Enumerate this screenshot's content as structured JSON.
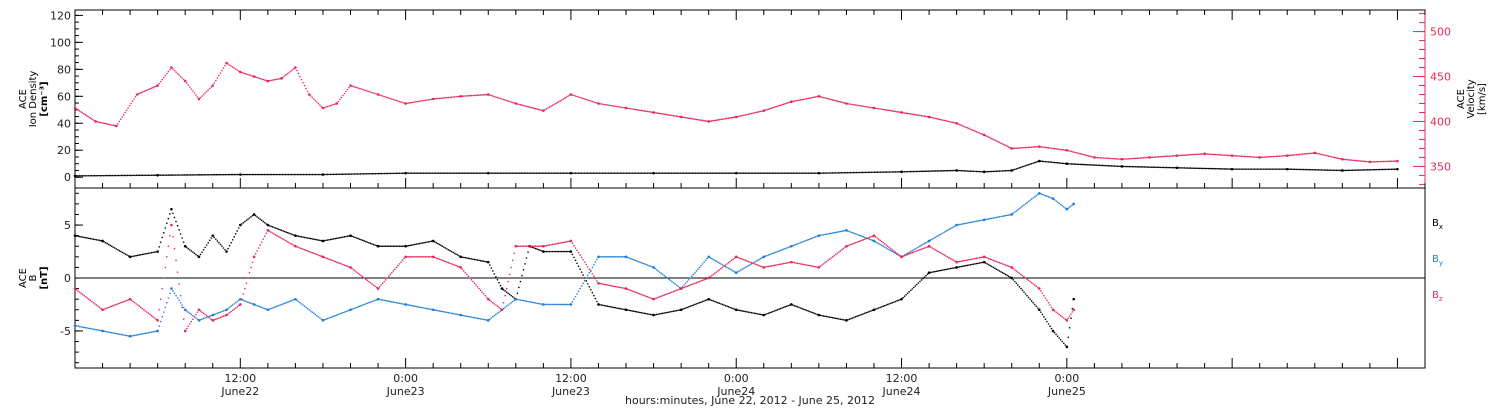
{
  "colors": {
    "black": "#000000",
    "pink": "#e8285a",
    "blue": "#1f7fd9",
    "axis": "#000000"
  },
  "chart_data": [
    {
      "panel": "density-velocity",
      "type": "scatter",
      "left_axis_label_lines": [
        "ACE",
        "Ion Density"
      ],
      "left_axis_unit": "[cm⁻³]",
      "right_axis_label_lines": [
        "ACE",
        "Velocity"
      ],
      "right_axis_unit": "[km/s]",
      "y_left_ticks": [
        "0",
        "20",
        "40",
        "60",
        "80",
        "100",
        "120"
      ],
      "y_left_range": [
        -8,
        124
      ],
      "y_right_ticks": [
        "350",
        "400",
        "450",
        "500"
      ],
      "y_right_range": [
        326,
        524
      ],
      "x_range_hours": [
        0,
        98
      ],
      "series": [
        {
          "color_key": "black",
          "axis": "left",
          "x": [
            0,
            6,
            12,
            18,
            24,
            30,
            36,
            42,
            48,
            54,
            60,
            64,
            66,
            68,
            70,
            72,
            76,
            80,
            84,
            88,
            92,
            96
          ],
          "y": [
            1,
            1.5,
            2,
            2,
            3,
            3,
            3,
            3,
            3,
            3,
            4,
            5,
            4,
            5,
            12,
            10,
            8,
            7,
            6,
            6,
            5,
            6
          ]
        },
        {
          "color_key": "pink",
          "axis": "right",
          "x": [
            0,
            1.5,
            3,
            4.5,
            6,
            7,
            8,
            9,
            10,
            11,
            12,
            13,
            14,
            15,
            16,
            17,
            18,
            19,
            20,
            22,
            24,
            26,
            28,
            30,
            32,
            34,
            36,
            38,
            40,
            42,
            44,
            46,
            48,
            50,
            52,
            54,
            56,
            58,
            60,
            62,
            64,
            66,
            68,
            70,
            72,
            74,
            76,
            78,
            80,
            82,
            84,
            86,
            88,
            90,
            92,
            94,
            96
          ],
          "y": [
            415,
            400,
            395,
            430,
            440,
            460,
            445,
            425,
            440,
            465,
            455,
            450,
            445,
            448,
            460,
            430,
            415,
            420,
            440,
            430,
            420,
            425,
            428,
            430,
            420,
            412,
            430,
            420,
            415,
            410,
            405,
            400,
            405,
            412,
            422,
            428,
            420,
            415,
            410,
            405,
            398,
            385,
            370,
            372,
            368,
            360,
            358,
            360,
            362,
            364,
            362,
            360,
            362,
            365,
            358,
            355,
            356
          ]
        }
      ]
    },
    {
      "panel": "magnetic-field",
      "type": "scatter",
      "axis_label_lines": [
        "ACE",
        "B"
      ],
      "axis_unit": "[nT]",
      "y_ticks": [
        "-5",
        "0",
        "5"
      ],
      "y_range": [
        -8.5,
        8.5
      ],
      "x_range_hours": [
        0,
        98
      ],
      "x_tick_labels": [
        {
          "x": 12,
          "time": "12:00",
          "date": "June22"
        },
        {
          "x": 24,
          "time": "0:00",
          "date": "June23"
        },
        {
          "x": 36,
          "time": "12:00",
          "date": "June23"
        },
        {
          "x": 48,
          "time": "0:00",
          "date": "June24"
        },
        {
          "x": 60,
          "time": "12:00",
          "date": "June24"
        },
        {
          "x": 72,
          "time": "0:00",
          "date": "June25"
        }
      ],
      "xlabel": "hours:minutes, June 22, 2012 - June 25, 2012",
      "series": [
        {
          "name": "B",
          "subscript": "x",
          "color_key": "black",
          "x": [
            0,
            2,
            4,
            6,
            7,
            8,
            9,
            10,
            11,
            12,
            13,
            14,
            16,
            18,
            20,
            22,
            24,
            26,
            28,
            30,
            31,
            32,
            33,
            34,
            36,
            38,
            40,
            42,
            44,
            46,
            48,
            50,
            52,
            54,
            56,
            58,
            60,
            62,
            64,
            66,
            68,
            70,
            71,
            72,
            72.5
          ],
          "y": [
            4,
            3.5,
            2,
            2.5,
            6.5,
            3,
            2,
            4,
            2.5,
            5,
            6,
            5,
            4,
            3.5,
            4,
            3,
            3,
            3.5,
            2,
            1.5,
            -1,
            -2,
            3,
            2.5,
            2.5,
            -2.5,
            -3,
            -3.5,
            -3,
            -2,
            -3,
            -3.5,
            -2.5,
            -3.5,
            -4,
            -3,
            -2,
            0.5,
            1,
            1.5,
            0,
            -3,
            -5,
            -6.5,
            -2
          ]
        },
        {
          "name": "B",
          "subscript": "y",
          "color_key": "blue",
          "x": [
            0,
            2,
            4,
            6,
            7,
            8,
            9,
            10,
            11,
            12,
            13,
            14,
            16,
            18,
            20,
            22,
            24,
            26,
            28,
            30,
            32,
            34,
            36,
            38,
            40,
            42,
            44,
            46,
            48,
            50,
            52,
            54,
            56,
            58,
            60,
            62,
            64,
            66,
            68,
            70,
            71,
            72,
            72.5
          ],
          "y": [
            -4.5,
            -5,
            -5.5,
            -5,
            -1,
            -3,
            -4,
            -3.5,
            -3,
            -2,
            -2.5,
            -3,
            -2,
            -4,
            -3,
            -2,
            -2.5,
            -3,
            -3.5,
            -4,
            -2,
            -2.5,
            -2.5,
            2,
            2,
            1,
            -1,
            2,
            0.5,
            2,
            3,
            4,
            4.5,
            3.5,
            2,
            3.5,
            5,
            5.5,
            6,
            8,
            7.5,
            6.5,
            7
          ]
        },
        {
          "name": "B",
          "subscript": "z",
          "color_key": "pink",
          "x": [
            0,
            2,
            4,
            6,
            7,
            8,
            9,
            10,
            11,
            12,
            13,
            14,
            16,
            18,
            20,
            22,
            24,
            26,
            28,
            30,
            31,
            32,
            34,
            36,
            38,
            40,
            42,
            44,
            46,
            48,
            50,
            52,
            54,
            56,
            58,
            60,
            62,
            64,
            66,
            68,
            70,
            71,
            72,
            72.5
          ],
          "y": [
            -1,
            -3,
            -2,
            -4,
            5,
            -5,
            -3,
            -4,
            -3.5,
            -2.5,
            2,
            4.5,
            3,
            2,
            1,
            -1,
            2,
            2,
            1,
            -2,
            -3,
            3,
            3,
            3.5,
            -0.5,
            -1,
            -2,
            -1,
            0,
            2,
            1,
            1.5,
            1,
            3,
            4,
            2,
            3,
            1.5,
            2,
            1,
            -1,
            -3,
            -4,
            -3
          ]
        }
      ]
    }
  ]
}
